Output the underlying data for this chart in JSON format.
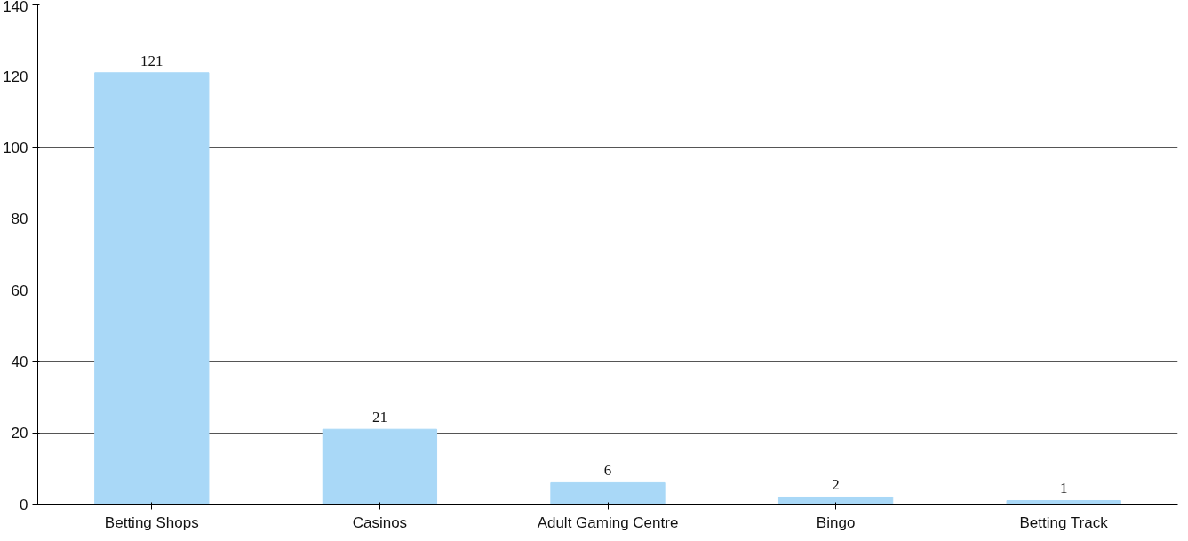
{
  "chart_data": {
    "type": "bar",
    "categories": [
      "Betting Shops",
      "Casinos",
      "Adult Gaming Centre",
      "Bingo",
      "Betting Track"
    ],
    "values": [
      121,
      21,
      6,
      2,
      1
    ],
    "color": "#a9d8f7",
    "ylim": [
      0,
      140
    ],
    "yticks": [
      0,
      20,
      40,
      60,
      80,
      100,
      120,
      140
    ],
    "grid": "y",
    "data_labels": true
  }
}
